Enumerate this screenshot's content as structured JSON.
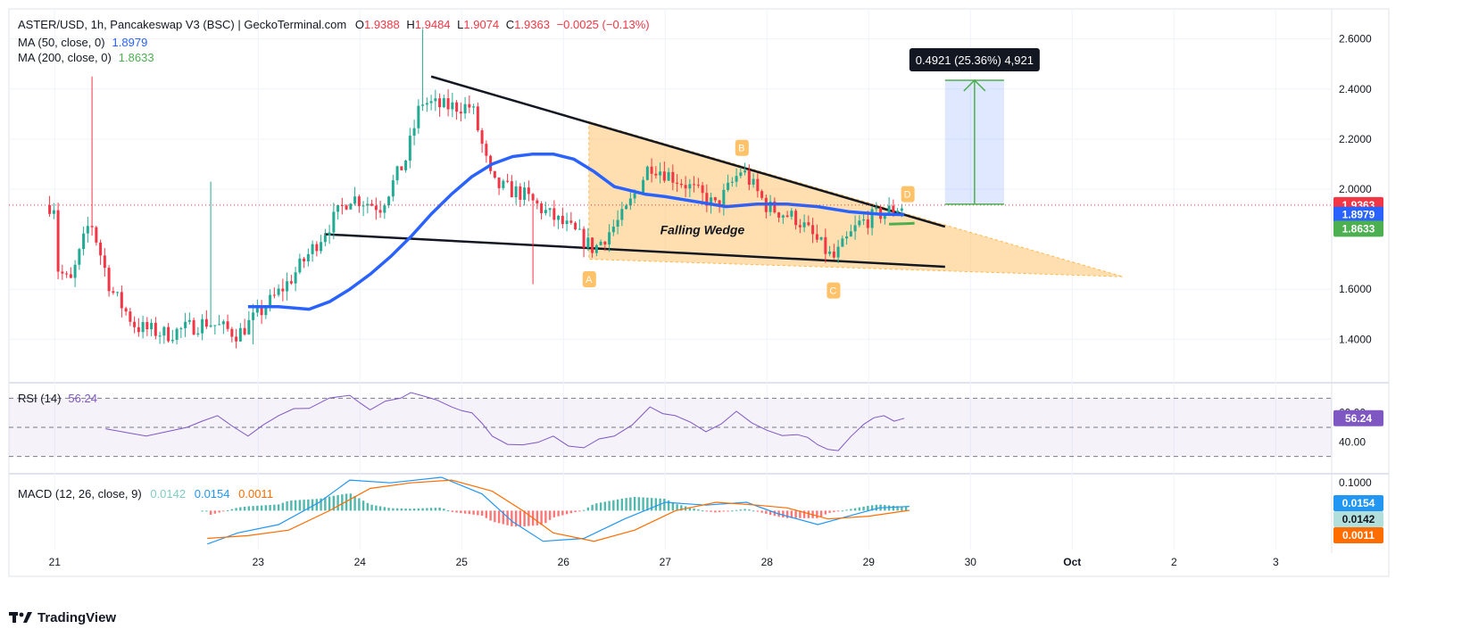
{
  "header": {
    "title": "ASTER/USD, 1h, Pancakeswap V3 (BSC) | GeckoTerminal.com",
    "ohlc": {
      "o_label": "O",
      "o": "1.9388",
      "h_label": "H",
      "h": "1.9484",
      "l_label": "L",
      "l": "1.9074",
      "c_label": "C",
      "c": "1.9363",
      "change": "−0.0025 (−0.13%)"
    }
  },
  "indicators": {
    "ma50": {
      "label": "MA (50, close, 0)",
      "value": "1.8979"
    },
    "ma200": {
      "label": "MA (200, close, 0)",
      "value": "1.8633"
    },
    "rsi": {
      "label": "RSI (14)",
      "value": "56.24"
    },
    "macd": {
      "label": "MACD (12, 26, close, 9)",
      "histogram": "0.0142",
      "macd": "0.0154",
      "signal": "0.0011"
    }
  },
  "footer": {
    "brand": "TradingView"
  },
  "colors": {
    "up": "#22ab94",
    "down": "#f23645",
    "ma50": "#2962ff",
    "ma200": "#4caf50",
    "rsi": "#7e57c2",
    "macd": "#2196f3",
    "signal": "#ff6d00",
    "price": "#f23645",
    "wedge": "#ffb74d",
    "measure": "#4caf50"
  },
  "chart_data": [
    {
      "type": "candlestick",
      "panel": "price",
      "x_ticks": [
        "21",
        "23",
        "24",
        "25",
        "26",
        "27",
        "28",
        "29",
        "30",
        "Oct",
        "2",
        "3"
      ],
      "x_tick_days": [
        21,
        23,
        24,
        25,
        26,
        27,
        28,
        29,
        30,
        31,
        32,
        33
      ],
      "x_range": [
        20.55,
        33.55
      ],
      "y_ticks": [
        "2.6000",
        "2.4000",
        "2.2000",
        "2.0000",
        "1.6000",
        "1.4000"
      ],
      "y_range": [
        1.23,
        2.72
      ],
      "last_price": 1.9363,
      "price_labels": [
        "1.9363",
        "1.8979",
        "1.8633"
      ],
      "ma50_path": [
        [
          22.9,
          1.53
        ],
        [
          23.2,
          1.53
        ],
        [
          23.5,
          1.52
        ],
        [
          23.7,
          1.55
        ],
        [
          23.9,
          1.6
        ],
        [
          24.1,
          1.66
        ],
        [
          24.3,
          1.73
        ],
        [
          24.5,
          1.81
        ],
        [
          24.7,
          1.9
        ],
        [
          24.9,
          1.98
        ],
        [
          25.1,
          2.05
        ],
        [
          25.3,
          2.1
        ],
        [
          25.5,
          2.13
        ],
        [
          25.7,
          2.14
        ],
        [
          25.9,
          2.14
        ],
        [
          26.1,
          2.12
        ],
        [
          26.3,
          2.07
        ],
        [
          26.5,
          2.01
        ],
        [
          26.8,
          1.98
        ],
        [
          27.0,
          1.97
        ],
        [
          27.3,
          1.95
        ],
        [
          27.6,
          1.93
        ],
        [
          27.9,
          1.94
        ],
        [
          28.2,
          1.94
        ],
        [
          28.5,
          1.93
        ],
        [
          28.8,
          1.91
        ],
        [
          29.1,
          1.9
        ],
        [
          29.35,
          1.898
        ]
      ],
      "ma200_path": [
        [
          29.2,
          1.86
        ],
        [
          29.45,
          1.8633
        ]
      ],
      "annotations": {
        "wedge_label": "Falling Wedge",
        "points": [
          "A",
          "B",
          "C",
          "D"
        ],
        "upper_trendline": [
          [
            24.7,
            2.45
          ],
          [
            29.75,
            1.85
          ]
        ],
        "lower_trendline": [
          [
            23.65,
            1.82
          ],
          [
            29.75,
            1.69
          ]
        ],
        "wedge_fill": [
          [
            26.25,
            2.27
          ],
          [
            31.5,
            1.65
          ],
          [
            26.25,
            1.72
          ]
        ],
        "measure_label": "0.4921 (25.36%) 4,921",
        "measure_range": [
          1.94,
          2.435
        ]
      }
    },
    {
      "type": "line",
      "panel": "rsi",
      "y_ticks": [
        "60.00",
        "40.00"
      ],
      "y_range": [
        20,
        80
      ],
      "band": [
        30,
        70
      ],
      "mid": 50,
      "last": 56.24
    },
    {
      "type": "line",
      "panel": "macd",
      "y_ticks": [
        "0.1000"
      ],
      "y_range": [
        -0.14,
        0.12
      ],
      "series": [
        {
          "name": "MACD",
          "last": 0.0154
        },
        {
          "name": "Signal",
          "last": 0.0011
        },
        {
          "name": "Histogram",
          "last": 0.0142
        }
      ]
    }
  ]
}
